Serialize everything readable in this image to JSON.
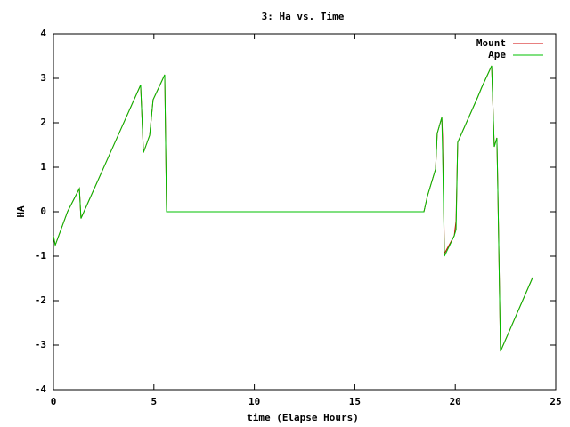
{
  "chart_data": {
    "type": "line",
    "title": "3: Ha vs. Time",
    "xlabel": "time (Elapse Hours)",
    "ylabel": "HA",
    "x": [
      0,
      0.09,
      0.7,
      1.29,
      1.37,
      4.34,
      4.48,
      4.79,
      4.96,
      5.54,
      5.63,
      18.44,
      18.62,
      19.02,
      19.1,
      19.33,
      19.37,
      19.46,
      19.95,
      20.04,
      20.12,
      21.1,
      21.32,
      21.81,
      21.94,
      22.07,
      22.12,
      22.25,
      23.85
    ],
    "series": [
      {
        "name": "Mount",
        "color": "#d00000",
        "values": [
          -0.55,
          -0.75,
          0,
          0.52,
          -0.15,
          2.85,
          1.33,
          1.72,
          2.52,
          3.08,
          0,
          0,
          0.36,
          0.96,
          1.76,
          2.12,
          1.66,
          -0.94,
          -0.54,
          -0.2,
          1.56,
          2.56,
          2.8,
          3.28,
          1.46,
          1.66,
          0.46,
          -3.14,
          -1.48
        ]
      },
      {
        "name": "Ape",
        "color": "#00c000",
        "values": [
          -0.55,
          -0.75,
          0,
          0.52,
          -0.15,
          2.85,
          1.33,
          1.72,
          2.52,
          3.08,
          0,
          0,
          0.36,
          0.96,
          1.76,
          2.12,
          1.36,
          -1.0,
          -0.54,
          -0.4,
          1.56,
          2.56,
          2.8,
          3.28,
          1.46,
          1.66,
          0.46,
          -3.14,
          -1.48
        ]
      }
    ],
    "xlim": [
      0,
      25
    ],
    "xticks": [
      0,
      5,
      10,
      15,
      20,
      25
    ],
    "ylim": [
      -4,
      4
    ],
    "yticks": [
      -4,
      -3,
      -2,
      -1,
      0,
      1,
      2,
      3,
      4
    ],
    "legend": "top-right"
  }
}
